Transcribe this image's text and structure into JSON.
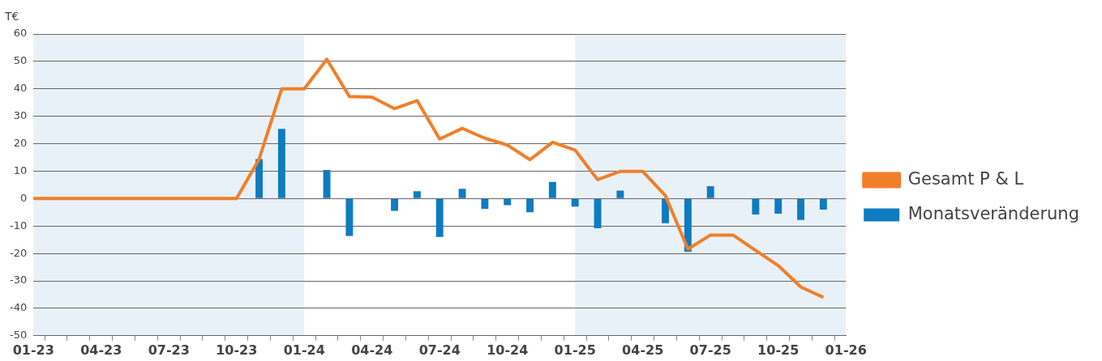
{
  "chart_data": {
    "type": "bar",
    "ylabel": "T€",
    "categories": [
      "01-23",
      null,
      null,
      "04-23",
      null,
      null,
      "07-23",
      null,
      null,
      "10-23",
      null,
      null,
      "01-24",
      null,
      null,
      "04-24",
      null,
      null,
      "07-24",
      null,
      null,
      "10-24",
      null,
      null,
      "01-25",
      null,
      null,
      "04-25",
      null,
      null,
      "07-25",
      null,
      null,
      "10-25",
      null,
      null,
      "01-26"
    ],
    "series": [
      {
        "name": "Gesamt P & L",
        "type": "line",
        "color": "#f07f2a",
        "values": [
          0,
          0,
          0,
          0,
          0,
          0,
          0,
          0,
          0,
          0,
          14.4,
          40,
          40,
          50.8,
          37.2,
          37,
          32.8,
          35.7,
          21.7,
          25.6,
          22,
          19.5,
          14.2,
          20.5,
          17.7,
          6.9,
          9.9,
          9.9,
          1.1,
          -18.4,
          -13.3,
          -13.3,
          -18.9,
          -24.4,
          -32.2,
          -36,
          null
        ]
      },
      {
        "name": "Monatsveränderung",
        "color": "#0f7bc0",
        "values": [
          null,
          null,
          null,
          null,
          null,
          null,
          null,
          null,
          null,
          null,
          14.4,
          25.4,
          null,
          10.4,
          -13.6,
          null,
          -4.5,
          2.7,
          -14,
          3.6,
          -3.7,
          -2.4,
          -5,
          6.1,
          -2.9,
          -10.8,
          2.9,
          null,
          -9,
          -19.4,
          4.5,
          null,
          -5.8,
          -5.5,
          -7.8,
          -4,
          null
        ]
      }
    ],
    "ylim": [
      -50,
      60
    ],
    "yticks": [
      -50,
      -40,
      -30,
      -20,
      -10,
      0,
      10,
      20,
      30,
      40,
      50,
      60
    ],
    "bands": [
      {
        "axis": "x",
        "from": "01-23",
        "to": "01-24",
        "color": "#e8f1f7"
      },
      {
        "axis": "x",
        "from": "01-25",
        "to": "01-26",
        "color": "#e8f1f7"
      }
    ],
    "grid": "y",
    "legend": "right"
  }
}
